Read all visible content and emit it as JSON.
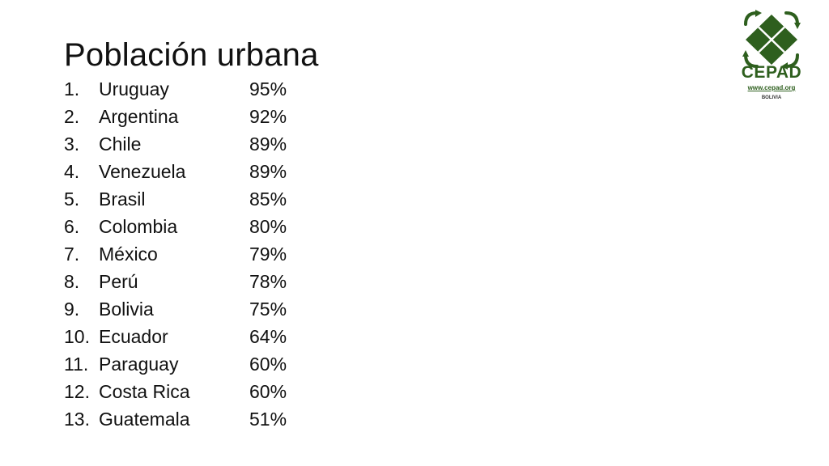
{
  "slide": {
    "title": "Población urbana",
    "items": [
      {
        "num": "1.",
        "country": "Uruguay",
        "value": "95%"
      },
      {
        "num": "2.",
        "country": "Argentina",
        "value": "92%"
      },
      {
        "num": "3.",
        "country": "Chile",
        "value": "89%"
      },
      {
        "num": "4.",
        "country": "Venezuela",
        "value": "89%"
      },
      {
        "num": "5.",
        "country": "Brasil",
        "value": "85%"
      },
      {
        "num": "6.",
        "country": "Colombia",
        "value": "80%"
      },
      {
        "num": "7.",
        "country": "México",
        "value": "79%"
      },
      {
        "num": "8.",
        "country": "Perú",
        "value": "78%"
      },
      {
        "num": "9.",
        "country": "Bolivia",
        "value": "75%"
      },
      {
        "num": "10.",
        "country": "Ecuador",
        "value": "64%"
      },
      {
        "num": "11.",
        "country": "Paraguay",
        "value": "60%"
      },
      {
        "num": "12.",
        "country": "Costa Rica",
        "value": "60%"
      },
      {
        "num": "13.",
        "country": "Guatemala",
        "value": "51%"
      }
    ]
  },
  "logo": {
    "name": "CEPAD",
    "url": "www.cepad.org",
    "country": "BOLIVIA",
    "icon": "recycle-diamond-icon",
    "color": "#2e5f1e"
  }
}
